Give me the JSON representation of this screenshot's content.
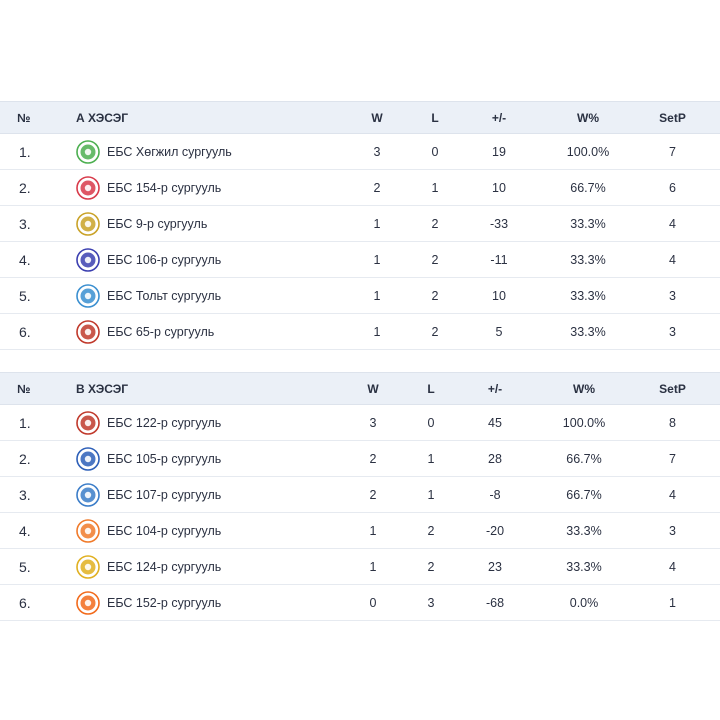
{
  "columns": {
    "rank": "№",
    "w": "W",
    "l": "L",
    "diff": "+/-",
    "wpct": "W%",
    "setp": "SetP"
  },
  "groups": [
    {
      "title": "А ХЭСЭГ",
      "rows": [
        {
          "rank": "1.",
          "team": "ЕБС Хөгжил сургууль",
          "w": "3",
          "l": "0",
          "diff": "19",
          "wpct": "100.0%",
          "setp": "7",
          "logo_icon": "hogjil-school-logo-icon",
          "logo_color": "#4caf50"
        },
        {
          "rank": "2.",
          "team": "ЕБС 154-р сургууль",
          "w": "2",
          "l": "1",
          "diff": "10",
          "wpct": "66.7%",
          "setp": "6",
          "logo_icon": "school-154-logo-icon",
          "logo_color": "#d83a4a"
        },
        {
          "rank": "3.",
          "team": "ЕБС 9-р сургууль",
          "w": "1",
          "l": "2",
          "diff": "-33",
          "wpct": "33.3%",
          "setp": "4",
          "logo_icon": "school-9-logo-icon",
          "logo_color": "#c9a227"
        },
        {
          "rank": "4.",
          "team": "ЕБС 106-р сургууль",
          "w": "1",
          "l": "2",
          "diff": "-11",
          "wpct": "33.3%",
          "setp": "4",
          "logo_icon": "school-106-logo-icon",
          "logo_color": "#3b3fb0"
        },
        {
          "rank": "5.",
          "team": "ЕБС Тольт сургууль",
          "w": "1",
          "l": "2",
          "diff": "10",
          "wpct": "33.3%",
          "setp": "3",
          "logo_icon": "tolt-school-logo-icon",
          "logo_color": "#3a8fd0"
        },
        {
          "rank": "6.",
          "team": "ЕБС 65-р сургууль",
          "w": "1",
          "l": "2",
          "diff": "5",
          "wpct": "33.3%",
          "setp": "3",
          "logo_icon": "school-65-logo-icon",
          "logo_color": "#c0392b"
        }
      ]
    },
    {
      "title": "В ХЭСЭГ",
      "rows": [
        {
          "rank": "1.",
          "team": "ЕБС 122-р сургууль",
          "w": "3",
          "l": "0",
          "diff": "45",
          "wpct": "100.0%",
          "setp": "8",
          "logo_icon": "school-122-logo-icon",
          "logo_color": "#c0392b"
        },
        {
          "rank": "2.",
          "team": "ЕБС 105-р сургууль",
          "w": "2",
          "l": "1",
          "diff": "28",
          "wpct": "66.7%",
          "setp": "7",
          "logo_icon": "school-105-logo-icon",
          "logo_color": "#2d5fb8"
        },
        {
          "rank": "3.",
          "team": "ЕБС 107-р сургууль",
          "w": "2",
          "l": "1",
          "diff": "-8",
          "wpct": "66.7%",
          "setp": "4",
          "logo_icon": "school-107-logo-icon",
          "logo_color": "#3a7cc8"
        },
        {
          "rank": "4.",
          "team": "ЕБС 104-р сургууль",
          "w": "1",
          "l": "2",
          "diff": "-20",
          "wpct": "33.3%",
          "setp": "3",
          "logo_icon": "school-104-logo-icon",
          "logo_color": "#f07a2a"
        },
        {
          "rank": "5.",
          "team": "ЕБС 124-р сургууль",
          "w": "1",
          "l": "2",
          "diff": "23",
          "wpct": "33.3%",
          "setp": "4",
          "logo_icon": "school-124-logo-icon",
          "logo_color": "#e0b020"
        },
        {
          "rank": "6.",
          "team": "ЕБС 152-р сургууль",
          "w": "0",
          "l": "3",
          "diff": "-68",
          "wpct": "0.0%",
          "setp": "1",
          "logo_icon": "school-152-logo-icon",
          "logo_color": "#f26a1b"
        }
      ]
    }
  ]
}
